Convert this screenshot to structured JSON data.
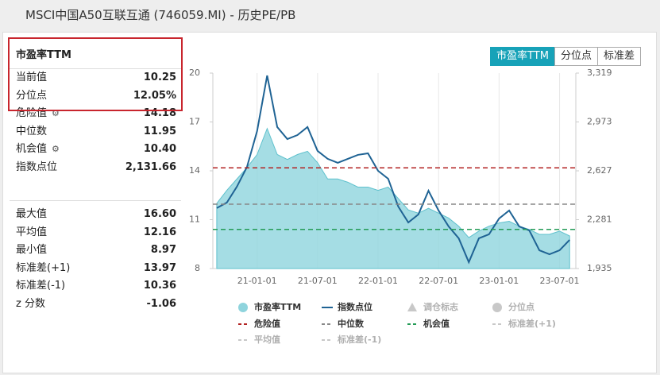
{
  "header": {
    "title": "MSCI中国A50互联互通 (746059.MI) - 历史PE/PB"
  },
  "stats": {
    "title": "市盈率TTM",
    "groups": [
      [
        {
          "label": "当前值",
          "value": "10.25"
        },
        {
          "label": "分位点",
          "value": "12.05%"
        },
        {
          "label": "危险值",
          "value": "14.18"
        },
        {
          "label": "中位数",
          "value": "11.95"
        },
        {
          "label": "机会值",
          "value": "10.40"
        },
        {
          "label": "指数点位",
          "value": "2,131.66"
        }
      ],
      [
        {
          "label": "最大值",
          "value": "16.60"
        },
        {
          "label": "平均值",
          "value": "12.16"
        },
        {
          "label": "最小值",
          "value": "8.97"
        },
        {
          "label": "标准差(+1)",
          "value": "13.97"
        },
        {
          "label": "标准差(-1)",
          "value": "10.36"
        },
        {
          "label": "z 分数",
          "value": "-1.06"
        }
      ]
    ]
  },
  "tabs": [
    "市盈率TTM",
    "分位点",
    "标准差"
  ],
  "chart_data": {
    "type": "area",
    "x": [
      "20-09-01",
      "20-10-01",
      "20-11-01",
      "20-12-01",
      "21-01-01",
      "21-02-01",
      "21-03-01",
      "21-04-01",
      "21-05-01",
      "21-06-01",
      "21-07-01",
      "21-08-01",
      "21-09-01",
      "21-10-01",
      "21-11-01",
      "21-12-01",
      "22-01-01",
      "22-02-01",
      "22-03-01",
      "22-04-01",
      "22-05-01",
      "22-06-01",
      "22-07-01",
      "22-08-01",
      "22-09-01",
      "22-10-01",
      "22-11-01",
      "22-12-01",
      "23-01-01",
      "23-02-01",
      "23-03-01",
      "23-04-01",
      "23-05-01",
      "23-06-01",
      "23-07-01",
      "23-08-01"
    ],
    "xlim": [
      "20-08-20",
      "23-08-20"
    ],
    "xticks": [
      "21-01-01",
      "21-07-01",
      "22-01-01",
      "22-07-01",
      "23-01-01",
      "23-07-01"
    ],
    "ylim": [
      8,
      20
    ],
    "yticks": [
      8,
      11,
      14,
      17,
      20
    ],
    "y2lim": [
      1935,
      3319
    ],
    "y2ticks": [
      {
        "value": 1935,
        "label": "1,935"
      },
      {
        "value": 2281,
        "label": "2,281"
      },
      {
        "value": 2627,
        "label": "2,627"
      },
      {
        "value": 2973,
        "label": "2,973"
      },
      {
        "value": 3319,
        "label": "3,319"
      }
    ],
    "grid": true,
    "series": [
      {
        "name": "市盈率TTM",
        "type": "area",
        "color": "#8fd4dd",
        "values": [
          12.0,
          12.8,
          13.5,
          14.2,
          15.0,
          16.6,
          15.0,
          14.7,
          15.0,
          15.2,
          14.5,
          13.5,
          13.5,
          13.3,
          13.0,
          13.0,
          12.8,
          13.0,
          12.3,
          11.6,
          11.4,
          11.7,
          11.4,
          11.1,
          10.6,
          9.9,
          10.3,
          10.6,
          10.8,
          10.9,
          10.6,
          10.4,
          10.1,
          10.1,
          10.3,
          10.0
        ]
      },
      {
        "name": "指数点位",
        "type": "line",
        "color": "#1f6394",
        "axis": "y2",
        "values": [
          2363,
          2402,
          2515,
          2655,
          2908,
          3302,
          2937,
          2852,
          2880,
          2937,
          2768,
          2712,
          2684,
          2712,
          2740,
          2751,
          2627,
          2571,
          2374,
          2261,
          2318,
          2486,
          2346,
          2233,
          2149,
          1980,
          2149,
          2177,
          2289,
          2346,
          2233,
          2205,
          2064,
          2036,
          2064,
          2138
        ]
      }
    ],
    "lines": [
      {
        "name": "危险值",
        "value": 14.18,
        "color": "#b22222"
      },
      {
        "name": "中位数",
        "value": 11.95,
        "color": "#888888"
      },
      {
        "name": "机会值",
        "value": 10.4,
        "color": "#239b56"
      }
    ],
    "hidden_series": [
      {
        "name": "调仓标志",
        "symbol": "triangle"
      },
      {
        "name": "分位点",
        "symbol": "circle"
      },
      {
        "name": "标准差(+1)",
        "symbol": "dash"
      },
      {
        "name": "平均值",
        "symbol": "dash"
      },
      {
        "name": "标准差(-1)",
        "symbol": "dash"
      }
    ]
  }
}
